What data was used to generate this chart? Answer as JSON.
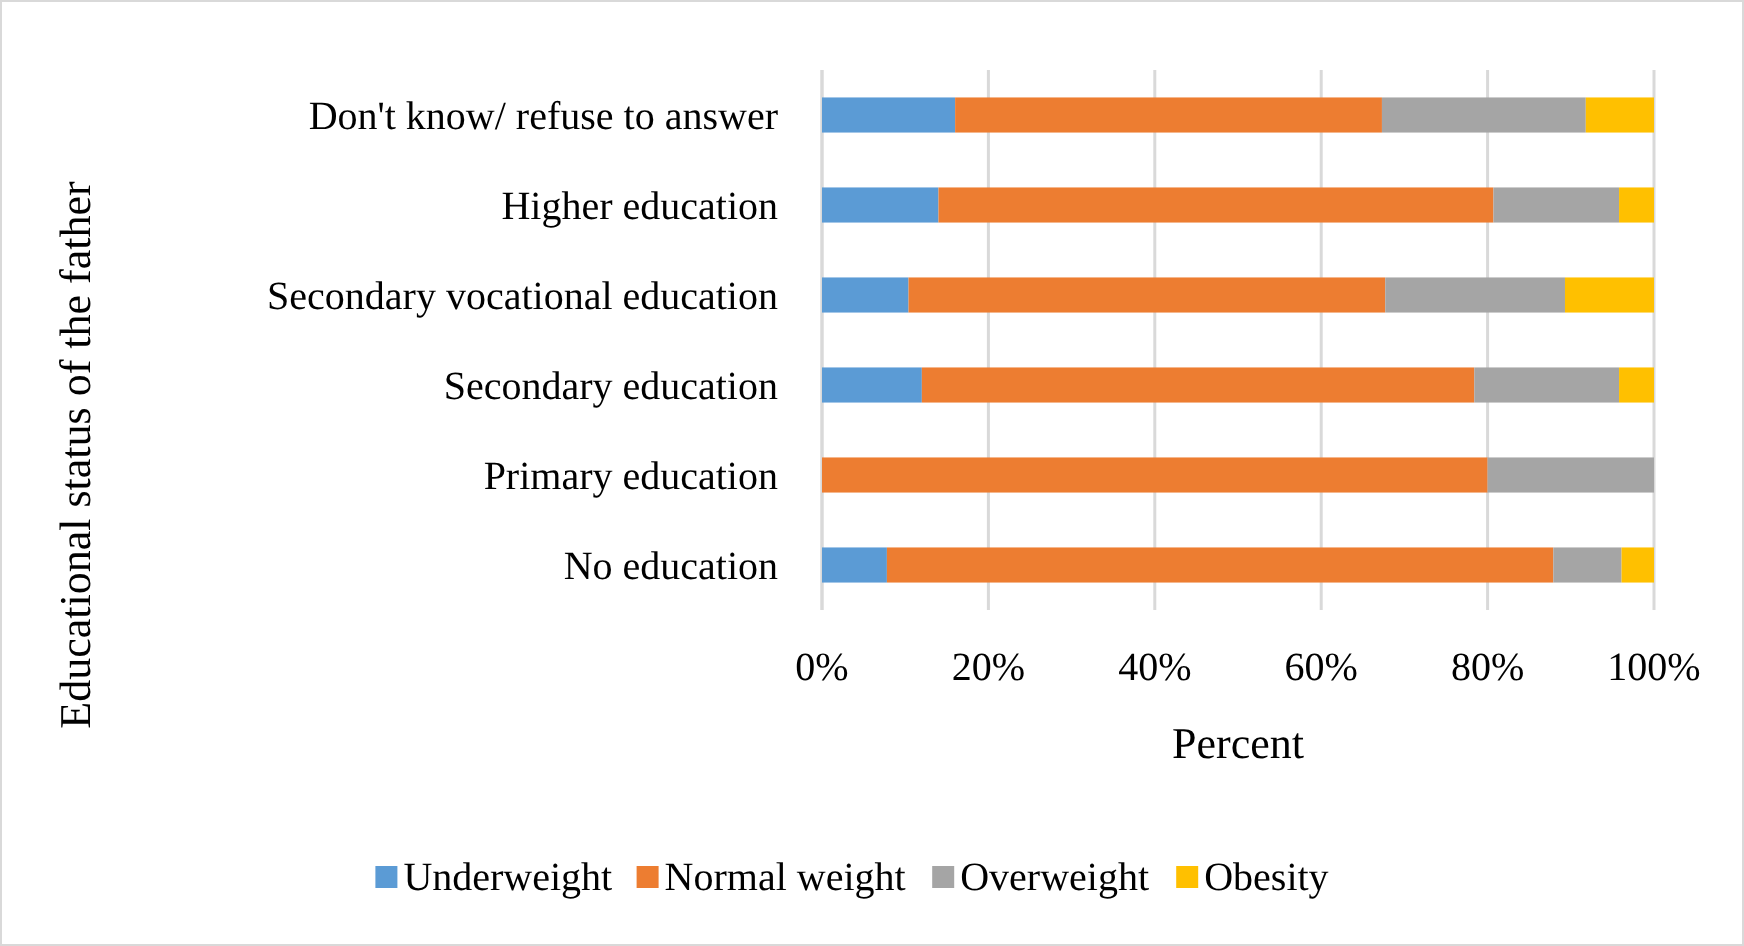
{
  "chart_data": {
    "type": "bar",
    "orientation": "horizontal",
    "stacked": true,
    "xlabel": "Percent",
    "ylabel": "Educational status of the father",
    "categories": [
      "Don't know/ refuse to answer",
      "Higher education",
      "Secondary vocational education",
      "Secondary education",
      "Primary education",
      "No education"
    ],
    "series": [
      {
        "name": "Underweight",
        "color": "#5b9bd5",
        "values": [
          16.0,
          14.0,
          10.4,
          12.0,
          0,
          7.8
        ]
      },
      {
        "name": "Normal weight",
        "color": "#ed7d31",
        "values": [
          51.3,
          66.7,
          57.3,
          66.4,
          80.0,
          80.1
        ]
      },
      {
        "name": "Overweight",
        "color": "#a5a5a5",
        "values": [
          24.5,
          15.1,
          21.6,
          17.4,
          20.0,
          8.2
        ]
      },
      {
        "name": "Obesity",
        "color": "#ffc000",
        "values": [
          8.2,
          4.2,
          10.7,
          4.2,
          0,
          3.9
        ]
      }
    ],
    "xlim": [
      0,
      100
    ],
    "xticks": [
      {
        "value": 0,
        "label": "0%"
      },
      {
        "value": 20,
        "label": "20%"
      },
      {
        "value": 40,
        "label": "40%"
      },
      {
        "value": 60,
        "label": "60%"
      },
      {
        "value": 80,
        "label": "80%"
      },
      {
        "value": 100,
        "label": "100%"
      }
    ],
    "grid": "x",
    "legend": "bottom"
  }
}
